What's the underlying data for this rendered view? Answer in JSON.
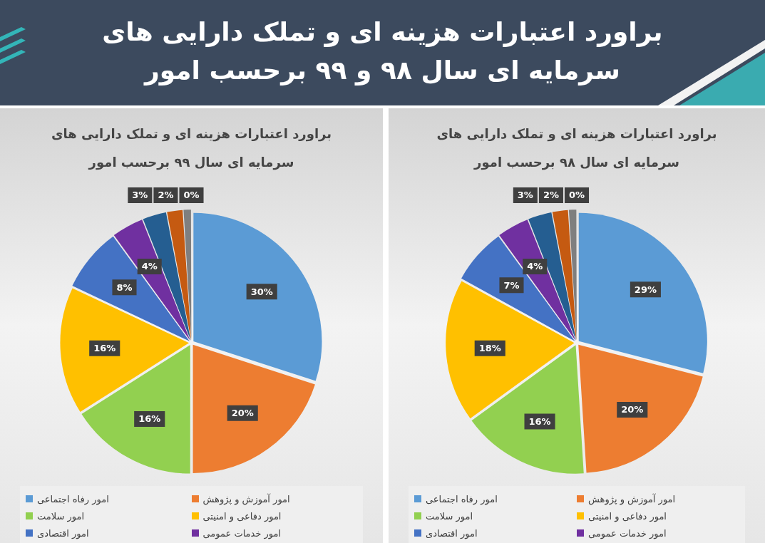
{
  "chart_data": [
    {
      "type": "other",
      "title": "براورد اعتبارات هزینه ای و تملک دارایی های سرمایه ای سال ۹۸ و ۹۹ برحسب امور"
    },
    {
      "type": "pie",
      "title": "براورد اعتبارات هزینه ای و تملک دارایی های سرمایه ای سال ۹۹ برحسب امور",
      "categories": [
        "امور رفاه اجتماعی",
        "امور آموزش و پژوهش",
        "امور سلامت",
        "امور دفاعی و امنیتی",
        "امور اقتصادی",
        "امور خدمات عمومی",
        null,
        null,
        null,
        null
      ],
      "values": [
        30,
        20,
        16,
        16,
        8,
        4,
        3,
        2,
        1,
        0
      ],
      "value_labels": [
        "30%",
        "20%",
        "16%",
        "16%",
        "8%",
        "4%",
        "3%",
        "2%",
        null,
        "0%"
      ],
      "colors": [
        "#5b9bd5",
        "#ed7d31",
        "#92d050",
        "#ffc000",
        "#4472c4",
        "#7030a0",
        "#255e91",
        "#c55a11",
        "#7f7f7f",
        "#bf9000"
      ],
      "legend": "bottom"
    },
    {
      "type": "pie",
      "title": "براورد اعتبارات هزینه ای و تملک دارایی های سرمایه ای سال ۹۸ برحسب امور",
      "categories": [
        "امور رفاه اجتماعی",
        "امور آموزش و پژوهش",
        "امور سلامت",
        "امور دفاعی و امنیتی",
        "امور اقتصادی",
        "امور خدمات عمومی",
        null,
        null,
        null,
        null
      ],
      "values": [
        29,
        20,
        16,
        18,
        7,
        4,
        3,
        2,
        1,
        0
      ],
      "value_labels": [
        "29%",
        "20%",
        "16%",
        "18%",
        "7%",
        "4%",
        "3%",
        "2%",
        null,
        "0%"
      ],
      "colors": [
        "#5b9bd5",
        "#ed7d31",
        "#92d050",
        "#ffc000",
        "#4472c4",
        "#7030a0",
        "#255e91",
        "#c55a11",
        "#7f7f7f",
        "#bf9000"
      ],
      "legend": "bottom"
    }
  ]
}
